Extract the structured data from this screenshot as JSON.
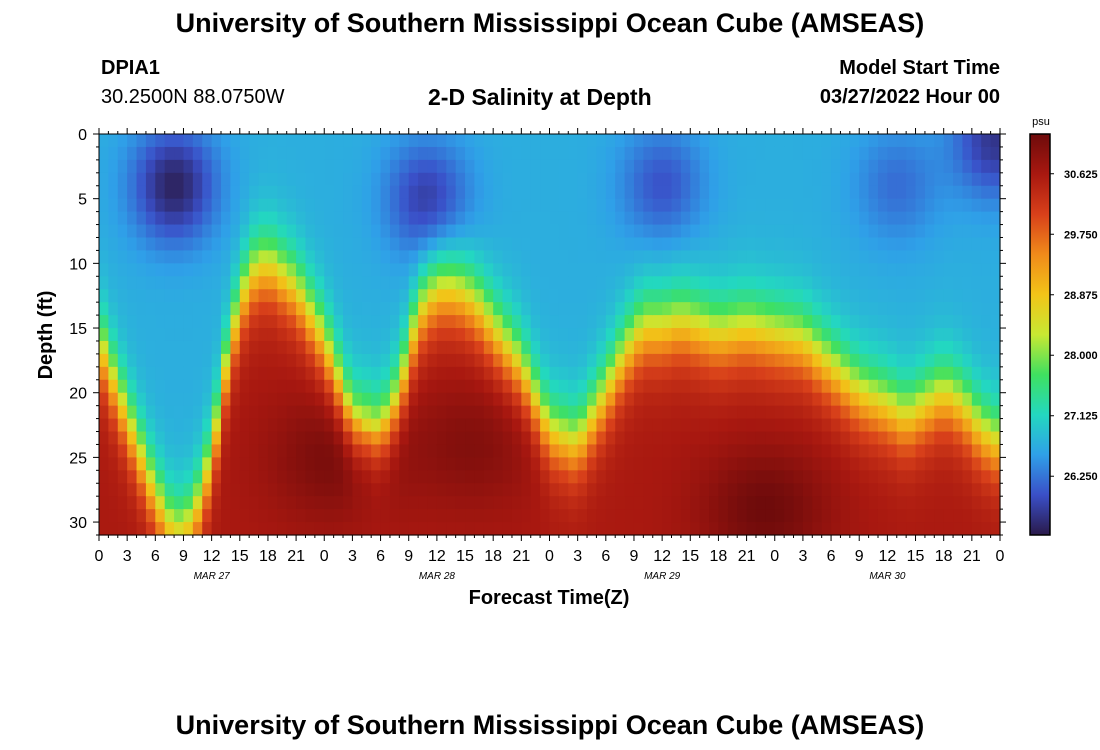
{
  "header": {
    "title": "University of Southern Mississippi Ocean Cube (AMSEAS)",
    "station_id": "DPIA1",
    "coordinates": "30.2500N  88.0750W",
    "subtitle": "2-D Salinity at Depth",
    "model_start_label": "Model Start Time",
    "model_start_value": "03/27/2022 Hour 00"
  },
  "footer": {
    "title": "University of Southern Mississippi Ocean Cube (AMSEAS)"
  },
  "colors": {
    "colormap": [
      "#2a1a4a",
      "#3a4fc8",
      "#2fa0e8",
      "#23d8c0",
      "#3fe060",
      "#c8e832",
      "#f2c418",
      "#f08a1a",
      "#d8401a",
      "#a81810",
      "#6e0b0b"
    ]
  },
  "chart_data": {
    "type": "heatmap",
    "xlabel": "Forecast Time(Z)",
    "ylabel": "Depth (ft)",
    "x_tick_labels": [
      "0",
      "3",
      "6",
      "9",
      "12",
      "15",
      "18",
      "21",
      "0",
      "3",
      "6",
      "9",
      "12",
      "15",
      "18",
      "21",
      "0",
      "3",
      "6",
      "9",
      "12",
      "15",
      "18",
      "21",
      "0",
      "3",
      "6",
      "9",
      "12",
      "15",
      "18",
      "21",
      "0"
    ],
    "x_range_hours": [
      0,
      96
    ],
    "day_labels": [
      "MAR 27",
      "MAR 28",
      "MAR 29",
      "MAR 30"
    ],
    "y_ticks": [
      0,
      5,
      10,
      15,
      20,
      25,
      30
    ],
    "y_range": [
      0,
      31
    ],
    "colorbar": {
      "unit": "psu",
      "ticks": [
        "30.625",
        "29.750",
        "28.875",
        "28.000",
        "27.125",
        "26.250"
      ],
      "range": [
        25.4,
        31.2
      ]
    },
    "halocline_depth_ft": {
      "hours": [
        0,
        3,
        6,
        8,
        10,
        12,
        14,
        16,
        18,
        21,
        24,
        27,
        30,
        32,
        34,
        36,
        38,
        40,
        42,
        45,
        48,
        51,
        54,
        56,
        58,
        60,
        62,
        64,
        66,
        69,
        72,
        75,
        78,
        81,
        84,
        86,
        88,
        90,
        92,
        94,
        96
      ],
      "depths": [
        16,
        22,
        28,
        31,
        30,
        25,
        16,
        11,
        10,
        12,
        16,
        22,
        23,
        20,
        14,
        12,
        12,
        13,
        15,
        18,
        23,
        24,
        20,
        17,
        15,
        15,
        14.5,
        15,
        15.5,
        15,
        15.5,
        16,
        18,
        20,
        21,
        22,
        21,
        20,
        21,
        23,
        24
      ]
    },
    "surface_cells": {
      "low_centers_hours": [
        8,
        35,
        60,
        85,
        95.5
      ],
      "low_center_depth_ft": [
        4,
        5,
        4,
        4,
        0.5
      ],
      "low_center_values_psu": [
        25.4,
        25.7,
        25.9,
        26.1,
        25.6
      ]
    },
    "bottom_maxima": {
      "hours": [
        25,
        40,
        71
      ],
      "depths": [
        25,
        24,
        29
      ],
      "values_psu": [
        31.1,
        31.0,
        31.2
      ]
    }
  }
}
